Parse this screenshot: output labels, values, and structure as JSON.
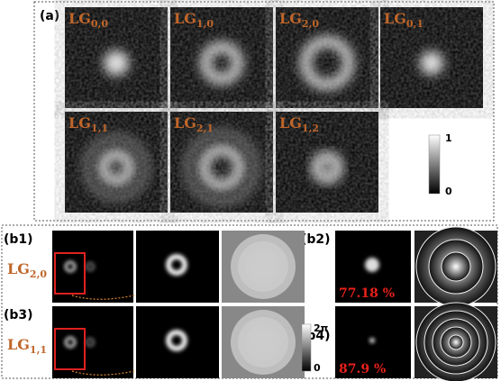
{
  "panel_a": {
    "label": "(a)",
    "modes": [
      {
        "base": "LG",
        "sub": "0,0"
      },
      {
        "base": "LG",
        "sub": "1,0"
      },
      {
        "base": "LG",
        "sub": "2,0"
      },
      {
        "base": "LG",
        "sub": "0,1"
      },
      {
        "base": "LG",
        "sub": "1,1"
      },
      {
        "base": "LG",
        "sub": "2,1"
      },
      {
        "base": "LG",
        "sub": "1,2"
      }
    ],
    "colorbar": {
      "max": "1",
      "min": "0"
    }
  },
  "panel_b": {
    "labels": [
      "(b1)",
      "(b2)",
      "(b3)",
      "(b4)"
    ],
    "rows": [
      {
        "base": "LG",
        "sub": "2,0"
      },
      {
        "base": "LG",
        "sub": "1,1"
      }
    ],
    "efficiencies": [
      "77.18 %",
      "87.9 %"
    ],
    "colorbar": {
      "max": "2π",
      "min": "0"
    }
  }
}
